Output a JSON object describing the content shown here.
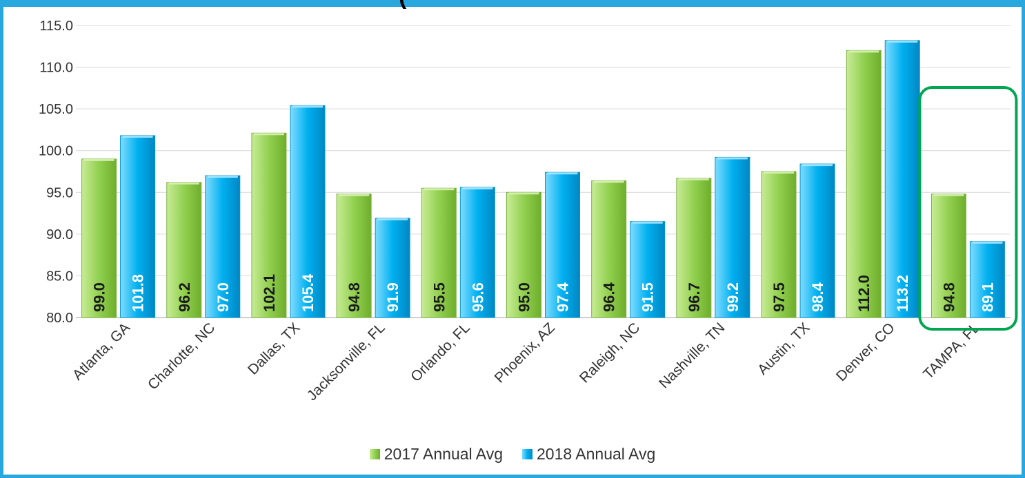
{
  "chart_data": {
    "type": "bar",
    "title": "(",
    "categories": [
      "Atlanta, GA",
      "Charlotte, NC",
      "Dallas, TX",
      "Jacksonville, FL",
      "Orlando, FL",
      "Phoenix, AZ",
      "Raleigh, NC",
      "Nashville, TN",
      "Austin, TX",
      "Denver, CO",
      "TAMPA, FL"
    ],
    "series": [
      {
        "name": "2017 Annual Avg",
        "values": [
          99.0,
          96.2,
          102.1,
          94.8,
          95.5,
          95.0,
          96.4,
          96.7,
          97.5,
          112.0,
          94.8
        ],
        "color": "#92d050"
      },
      {
        "name": "2018 Annual Avg",
        "values": [
          101.8,
          97.0,
          105.4,
          91.9,
          95.6,
          97.4,
          91.5,
          99.2,
          98.4,
          113.2,
          89.1
        ],
        "color": "#00b0f0"
      }
    ],
    "ylim": [
      80.0,
      115.0
    ],
    "yticks": [
      "80.0",
      "85.0",
      "90.0",
      "95.0",
      "100.0",
      "105.0",
      "110.0",
      "115.0"
    ],
    "grid": true,
    "legend_position": "bottom",
    "highlight_category": "TAMPA, FL",
    "highlight_color": "#00a651"
  }
}
